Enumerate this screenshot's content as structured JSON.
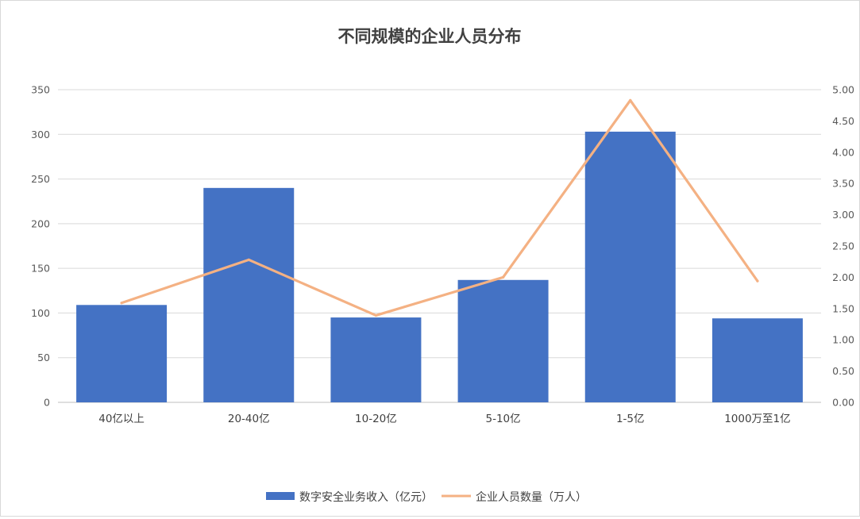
{
  "chart_data": {
    "type": "bar",
    "title": "不同规模的企业人员分布",
    "categories": [
      "40亿以上",
      "20-40亿",
      "10-20亿",
      "5-10亿",
      "1-5亿",
      "1000万至1亿"
    ],
    "series": [
      {
        "name": "数字安全业务收入（亿元）",
        "type": "bar",
        "axis": "left",
        "color": "#4472C4",
        "values": [
          109,
          240,
          95,
          137,
          303,
          94
        ]
      },
      {
        "name": "企业人员数量（万人）",
        "type": "line",
        "axis": "right",
        "color": "#F4B183",
        "values": [
          1.59,
          2.28,
          1.39,
          2.0,
          4.83,
          1.94
        ]
      }
    ],
    "y_left": {
      "min": 0,
      "max": 350,
      "ticks": [
        "0",
        "50",
        "100",
        "150",
        "200",
        "250",
        "300",
        "350"
      ]
    },
    "y_right": {
      "min": 0,
      "max": 5,
      "ticks": [
        "0.00",
        "0.50",
        "1.00",
        "1.50",
        "2.00",
        "2.50",
        "3.00",
        "3.50",
        "4.00",
        "4.50",
        "5.00"
      ]
    },
    "grid": true,
    "legend_position": "bottom",
    "gridline_color": "#d9d9d9",
    "axis_color": "#bfbfbf"
  }
}
